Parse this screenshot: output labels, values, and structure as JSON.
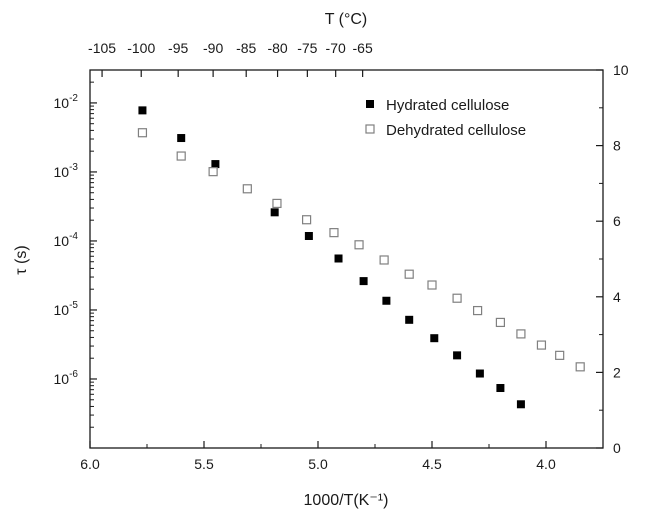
{
  "chart_data": {
    "type": "scatter",
    "xlabel": "1000/T(K⁻¹)",
    "ylabel": "τ (s)",
    "top_xlabel": "T (°C)",
    "xlim": [
      6.0,
      3.75
    ],
    "x_reversed": true,
    "ylim": [
      1e-07,
      0.03
    ],
    "yscale": "log",
    "right_ylim": [
      0,
      10
    ],
    "x_ticks": [
      6.0,
      5.5,
      5.0,
      4.5,
      4.0
    ],
    "x_tick_labels": [
      "6.0",
      "5.5",
      "5.0",
      "4.5",
      "4.0"
    ],
    "top_ticks": [
      -105,
      -100,
      -95,
      -90,
      -85,
      -80,
      -75,
      -70,
      -65
    ],
    "top_tick_labels": [
      "-105",
      "-100",
      "-95",
      "-90",
      "-85",
      "-80",
      "-75",
      "-70",
      "-65"
    ],
    "y_ticks": [
      {
        "value": 0.01,
        "base": "10",
        "exp": "-2"
      },
      {
        "value": 0.001,
        "base": "10",
        "exp": "-3"
      },
      {
        "value": 0.0001,
        "base": "10",
        "exp": "-4"
      },
      {
        "value": 1e-05,
        "base": "10",
        "exp": "-5"
      },
      {
        "value": 1e-06,
        "base": "10",
        "exp": "-6"
      }
    ],
    "right_ticks": [
      0,
      2,
      4,
      6,
      8,
      10
    ],
    "right_tick_labels": [
      "0",
      "2",
      "4",
      "6",
      "8",
      "10"
    ],
    "grid": false,
    "legend_position": "top-right",
    "series": [
      {
        "name": "Hydrated cellulose",
        "marker": "filled-square",
        "color": "#000000",
        "x": [
          5.77,
          5.6,
          5.45,
          5.19,
          5.04,
          4.91,
          4.8,
          4.7,
          4.6,
          4.49,
          4.39,
          4.29,
          4.2,
          4.11
        ],
        "y": [
          0.0078,
          0.0031,
          0.0013,
          0.00026,
          0.000118,
          5.57e-05,
          2.62e-05,
          1.36e-05,
          7.2e-06,
          3.9e-06,
          2.2e-06,
          1.2e-06,
          7.4e-07,
          4.3e-07
        ]
      },
      {
        "name": "Dehydrated cellulose",
        "marker": "open-square",
        "color": "#808080",
        "x": [
          5.77,
          5.6,
          5.46,
          5.31,
          5.18,
          5.05,
          4.93,
          4.82,
          4.71,
          4.6,
          4.5,
          4.39,
          4.3,
          4.2,
          4.11,
          4.02,
          3.94,
          3.85
        ],
        "y": [
          0.0037,
          0.0017,
          0.00101,
          0.00057,
          0.00035,
          0.000203,
          0.000132,
          8.8e-05,
          5.3e-05,
          3.3e-05,
          2.3e-05,
          1.48e-05,
          9.8e-06,
          6.6e-06,
          4.5e-06,
          3.1e-06,
          2.2e-06,
          1.5e-06
        ]
      }
    ]
  }
}
